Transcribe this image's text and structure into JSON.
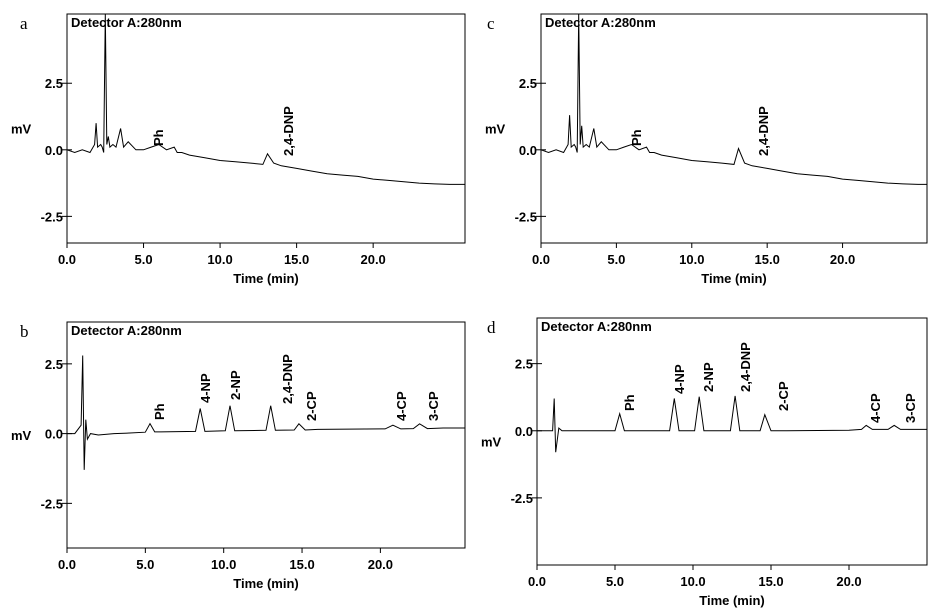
{
  "chart_data": [
    {
      "type": "line",
      "panel_label": "a",
      "title": "Detector A:280nm",
      "x_label": "Time (min)",
      "y_label": "mV",
      "xlim": [
        0,
        26
      ],
      "ylim": [
        -3.5,
        5.1
      ],
      "xticks": [
        {
          "value": 0,
          "label": "0.0"
        },
        {
          "value": 5,
          "label": "5.0"
        },
        {
          "value": 10,
          "label": "10.0"
        },
        {
          "value": 15,
          "label": "15.0"
        },
        {
          "value": 20,
          "label": "20.0"
        }
      ],
      "yticks": [
        {
          "value": -2.5,
          "label": "-2.5"
        },
        {
          "value": 0,
          "label": "0.0"
        },
        {
          "value": 2.5,
          "label": "2.5"
        }
      ],
      "color": "#000000",
      "x": [
        0,
        0.5,
        1,
        1.5,
        1.8,
        1.9,
        2.0,
        2.2,
        2.3,
        2.4,
        2.5,
        2.6,
        2.7,
        2.8,
        3.0,
        3.2,
        3.5,
        3.7,
        4.0,
        4.5,
        5,
        5.5,
        6,
        6.5,
        7,
        7.2,
        7.5,
        8,
        9,
        10,
        11,
        12,
        12.8,
        13.1,
        13.5,
        14,
        15,
        16,
        17,
        18,
        19,
        20,
        21,
        22,
        23,
        24,
        25,
        26
      ],
      "values": [
        0,
        -0.1,
        0,
        -0.1,
        0.2,
        1.0,
        0.1,
        0.2,
        0.1,
        -0.1,
        5.1,
        0.2,
        0.5,
        0.1,
        0.2,
        0.1,
        0.8,
        0.1,
        0.3,
        0.0,
        0.0,
        0.1,
        0.2,
        0.0,
        0.1,
        -0.1,
        -0.1,
        -0.2,
        -0.3,
        -0.4,
        -0.45,
        -0.5,
        -0.55,
        -0.15,
        -0.5,
        -0.6,
        -0.7,
        -0.8,
        -0.9,
        -0.95,
        -1.0,
        -1.1,
        -1.15,
        -1.2,
        -1.25,
        -1.28,
        -1.3,
        -1.3
      ],
      "annotations": [
        "Ph",
        "2,4-DNP"
      ]
    },
    {
      "type": "line",
      "panel_label": "b",
      "title": "Detector A:280nm",
      "x_label": "Time (min)",
      "y_label": "mV",
      "xlim": [
        0,
        25.4
      ],
      "ylim": [
        -4.1,
        4.0
      ],
      "xticks": [
        {
          "value": 0,
          "label": "0.0"
        },
        {
          "value": 5,
          "label": "5.0"
        },
        {
          "value": 10,
          "label": "10.0"
        },
        {
          "value": 15,
          "label": "15.0"
        },
        {
          "value": 20,
          "label": "20.0"
        }
      ],
      "yticks": [
        {
          "value": -2.5,
          "label": "-2.5"
        },
        {
          "value": 0,
          "label": "0.0"
        },
        {
          "value": 2.5,
          "label": "2.5"
        }
      ],
      "color": "#000000",
      "x": [
        0,
        0.5,
        0.9,
        1.0,
        1.1,
        1.2,
        1.3,
        1.5,
        2,
        3,
        4,
        5,
        5.3,
        5.6,
        6,
        8.2,
        8.5,
        8.8,
        10.1,
        10.4,
        10.7,
        12.7,
        13.0,
        13.3,
        14.5,
        14.8,
        15.2,
        16,
        18,
        20.3,
        20.8,
        21.3,
        22.1,
        22.5,
        23,
        24,
        25.4
      ],
      "values": [
        0,
        0,
        0.3,
        2.8,
        -1.3,
        0.5,
        -0.2,
        0,
        -0.05,
        0,
        0.02,
        0.05,
        0.36,
        0.06,
        0.06,
        0.08,
        0.9,
        0.08,
        0.1,
        1.0,
        0.1,
        0.12,
        1.0,
        0.12,
        0.13,
        0.35,
        0.13,
        0.15,
        0.16,
        0.17,
        0.3,
        0.17,
        0.18,
        0.35,
        0.18,
        0.2,
        0.2
      ],
      "annotations": [
        "Ph",
        "4-NP",
        "2-NP",
        "2,4-DNP",
        "2-CP",
        "4-CP",
        "3-CP"
      ]
    },
    {
      "type": "line",
      "panel_label": "c",
      "title": "Detector A:280nm",
      "x_label": "Time (min)",
      "y_label": "mV",
      "xlim": [
        0,
        25.6
      ],
      "ylim": [
        -3.5,
        5.1
      ],
      "xticks": [
        {
          "value": 0,
          "label": "0.0"
        },
        {
          "value": 5,
          "label": "5.0"
        },
        {
          "value": 10,
          "label": "10.0"
        },
        {
          "value": 15,
          "label": "15.0"
        },
        {
          "value": 20,
          "label": "20.0"
        }
      ],
      "yticks": [
        {
          "value": -2.5,
          "label": "-2.5"
        },
        {
          "value": 0,
          "label": "0.0"
        },
        {
          "value": 2.5,
          "label": "2.5"
        }
      ],
      "color": "#000000",
      "x": [
        0,
        0.5,
        1,
        1.5,
        1.8,
        1.9,
        2.0,
        2.2,
        2.3,
        2.4,
        2.5,
        2.6,
        2.7,
        2.8,
        3.0,
        3.2,
        3.5,
        3.7,
        4.0,
        4.5,
        5,
        5.5,
        6,
        6.5,
        7,
        7.2,
        7.5,
        8,
        9,
        10,
        11,
        12,
        12.8,
        13.1,
        13.5,
        14,
        15,
        16,
        17,
        18,
        19,
        20,
        21,
        22,
        23,
        24,
        25,
        25.6
      ],
      "values": [
        0,
        -0.1,
        0,
        -0.1,
        0.2,
        1.3,
        0.1,
        0.2,
        0.1,
        -0.1,
        5.1,
        0.2,
        0.9,
        0.1,
        0.2,
        0.1,
        0.8,
        0.1,
        0.3,
        0.0,
        0.0,
        0.1,
        0.2,
        0.0,
        0.1,
        -0.1,
        -0.1,
        -0.2,
        -0.3,
        -0.4,
        -0.45,
        -0.5,
        -0.55,
        0.05,
        -0.5,
        -0.6,
        -0.7,
        -0.8,
        -0.9,
        -0.95,
        -1.0,
        -1.1,
        -1.15,
        -1.2,
        -1.25,
        -1.28,
        -1.3,
        -1.3
      ],
      "annotations": [
        "Ph",
        "2,4-DNP"
      ]
    },
    {
      "type": "line",
      "panel_label": "d",
      "title": "Detector A:280nm",
      "x_label": "Time (min)",
      "y_label": "mV",
      "xlim": [
        0,
        25
      ],
      "ylim": [
        -5.0,
        4.2
      ],
      "xticks": [
        {
          "value": 0,
          "label": "0.0"
        },
        {
          "value": 5,
          "label": "5.0"
        },
        {
          "value": 10,
          "label": "10.0"
        },
        {
          "value": 15,
          "label": "15.0"
        },
        {
          "value": 20,
          "label": "20.0"
        }
      ],
      "yticks": [
        {
          "value": -2.5,
          "label": "-2.5"
        },
        {
          "value": 0,
          "label": "0.0"
        },
        {
          "value": 2.5,
          "label": "2.5"
        }
      ],
      "color": "#000000",
      "x": [
        0,
        0.5,
        1.0,
        1.1,
        1.2,
        1.4,
        1.6,
        2,
        4,
        5,
        5.3,
        5.6,
        8.5,
        8.8,
        9.1,
        10.1,
        10.4,
        10.7,
        12.4,
        12.7,
        13.0,
        14.3,
        14.6,
        15.0,
        16,
        20,
        20.8,
        21.1,
        21.5,
        22.5,
        22.9,
        23.3,
        25
      ],
      "values": [
        0,
        0,
        0,
        1.2,
        -0.8,
        0.1,
        0,
        0,
        0,
        0,
        0.63,
        0,
        0,
        1.2,
        0,
        0,
        1.27,
        0,
        0,
        1.3,
        0,
        0,
        0.6,
        0,
        0,
        0.02,
        0.05,
        0.2,
        0.05,
        0.05,
        0.2,
        0.05,
        0.05
      ],
      "annotations": [
        "Ph",
        "4-NP",
        "2-NP",
        "2,4-DNP",
        "2-CP",
        "4-CP",
        "3-CP"
      ]
    }
  ]
}
